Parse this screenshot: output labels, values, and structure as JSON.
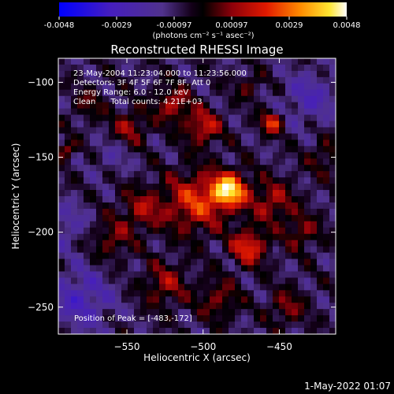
{
  "chart_data": {
    "type": "heatmap",
    "title": "Reconstructed RHESSI Image",
    "xlabel": "Heliocentric X (arcsec)",
    "ylabel": "Heliocentric Y (arcsec)",
    "xlim": [
      -595,
      -413
    ],
    "ylim": [
      -268,
      -84
    ],
    "x_ticks": [
      -550,
      -500,
      -450
    ],
    "y_ticks": [
      -100,
      -150,
      -200,
      -250
    ],
    "colorbar": {
      "ticks": [
        "-0.0048",
        "-0.0029",
        "-0.00097",
        "0.00097",
        "0.0029",
        "0.0048"
      ],
      "min": -0.0048,
      "max": 0.0048,
      "unit_label": "(photons cm⁻² s⁻¹ asec⁻²)"
    },
    "annotations": [
      "23-May-2004 11:23:04.000 to 11:23:56.000",
      "Detectors: 3F 4F 5F 6F 7F 8F, Att 0",
      "Energy Range: 6.0 - 12.0 keV",
      "Clean      Total counts: 4.21E+03"
    ],
    "peak_label": "Position of Peak = [-483,-172]",
    "peak": [
      -483,
      -172
    ],
    "sources": [
      {
        "x": -483,
        "y": -172,
        "amp": 0.0048,
        "sigma": 8
      },
      {
        "x": -505,
        "y": -180,
        "amp": 0.0028,
        "sigma": 14
      },
      {
        "x": -470,
        "y": -210,
        "amp": 0.003,
        "sigma": 8
      },
      {
        "x": -455,
        "y": -127,
        "amp": 0.003,
        "sigma": 5
      },
      {
        "x": -500,
        "y": -130,
        "amp": 0.0025,
        "sigma": 8
      },
      {
        "x": -520,
        "y": -115,
        "amp": 0.0022,
        "sigma": 8
      },
      {
        "x": -548,
        "y": -130,
        "amp": 0.0018,
        "sigma": 8
      },
      {
        "x": -540,
        "y": -185,
        "amp": 0.0018,
        "sigma": 10
      },
      {
        "x": -560,
        "y": -205,
        "amp": 0.0015,
        "sigma": 9
      },
      {
        "x": -525,
        "y": -235,
        "amp": 0.0018,
        "sigma": 10
      },
      {
        "x": -455,
        "y": -180,
        "amp": 0.002,
        "sigma": 10
      },
      {
        "x": -435,
        "y": -200,
        "amp": 0.0016,
        "sigma": 8
      },
      {
        "x": -445,
        "y": -250,
        "amp": 0.0016,
        "sigma": 8
      },
      {
        "x": -490,
        "y": -245,
        "amp": 0.0016,
        "sigma": 9
      },
      {
        "x": -575,
        "y": -115,
        "amp": 0.0012,
        "sigma": 7
      },
      {
        "x": -420,
        "y": -150,
        "amp": 0.0012,
        "sigma": 8
      },
      {
        "x": -590,
        "y": -145,
        "amp": 0.0022,
        "sigma": 4
      },
      {
        "x": -470,
        "y": -103,
        "amp": 0.0012,
        "sigma": 6
      },
      {
        "x": -430,
        "y": -110,
        "amp": -0.0015,
        "sigma": 12
      },
      {
        "x": -580,
        "y": -245,
        "amp": -0.0018,
        "sigma": 14
      },
      {
        "x": -590,
        "y": -195,
        "amp": -0.0012,
        "sigma": 10
      },
      {
        "x": -560,
        "y": -150,
        "amp": -0.0008,
        "sigma": 8
      }
    ]
  },
  "footer": {
    "timestamp": "1-May-2022 01:07"
  }
}
